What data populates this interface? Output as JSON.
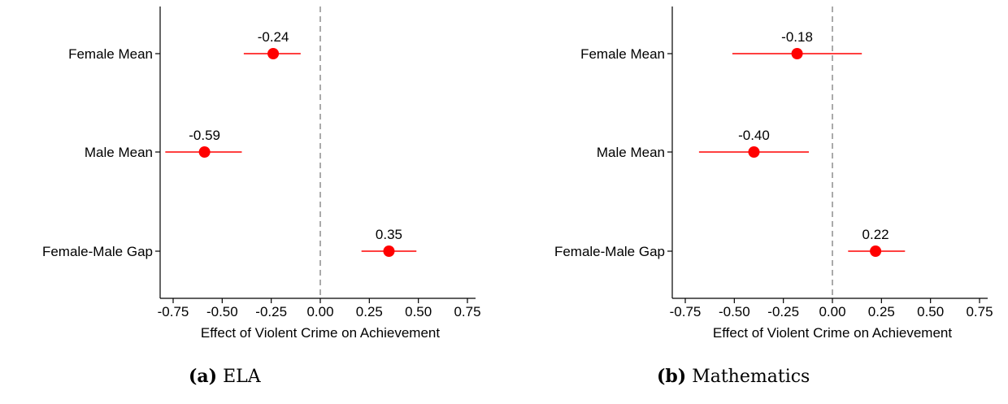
{
  "chart_data": [
    {
      "type": "scatter",
      "subtype": "coefficient-plot",
      "caption_letter": "(a)",
      "caption_text": "ELA",
      "xlabel": "Effect of Violent Crime on Achievement",
      "ylabel": "",
      "xlim": [
        -0.78,
        0.78
      ],
      "xticks": [
        "-0.75",
        "-0.50",
        "-0.25",
        "0.00",
        "0.25",
        "0.50",
        "0.75"
      ],
      "xtick_values": [
        -0.75,
        -0.5,
        -0.25,
        0,
        0.25,
        0.5,
        0.75
      ],
      "reference_line": 0,
      "grid": false,
      "categories": [
        "Female Mean",
        "Male Mean",
        "Female-Male Gap"
      ],
      "estimates": [
        -0.24,
        -0.59,
        0.35
      ],
      "ci_low": [
        -0.39,
        -0.79,
        0.21
      ],
      "ci_high": [
        -0.1,
        -0.4,
        0.49
      ],
      "labels": [
        "-0.24",
        "-0.59",
        "0.35"
      ],
      "color": "#ff0000"
    },
    {
      "type": "scatter",
      "subtype": "coefficient-plot",
      "caption_letter": "(b)",
      "caption_text": "Mathematics",
      "xlabel": "Effect of Violent Crime on Achievement",
      "ylabel": "",
      "xlim": [
        -0.78,
        0.78
      ],
      "xticks": [
        "-0.75",
        "-0.50",
        "-0.25",
        "0.00",
        "0.25",
        "0.50",
        "0.75"
      ],
      "xtick_values": [
        -0.75,
        -0.5,
        -0.25,
        0,
        0.25,
        0.5,
        0.75
      ],
      "reference_line": 0,
      "grid": false,
      "categories": [
        "Female Mean",
        "Male Mean",
        "Female-Male Gap"
      ],
      "estimates": [
        -0.18,
        -0.4,
        0.22
      ],
      "ci_low": [
        -0.51,
        -0.68,
        0.08
      ],
      "ci_high": [
        0.15,
        -0.12,
        0.37
      ],
      "labels": [
        "-0.18",
        "-0.40",
        "0.22"
      ],
      "color": "#ff0000"
    }
  ]
}
